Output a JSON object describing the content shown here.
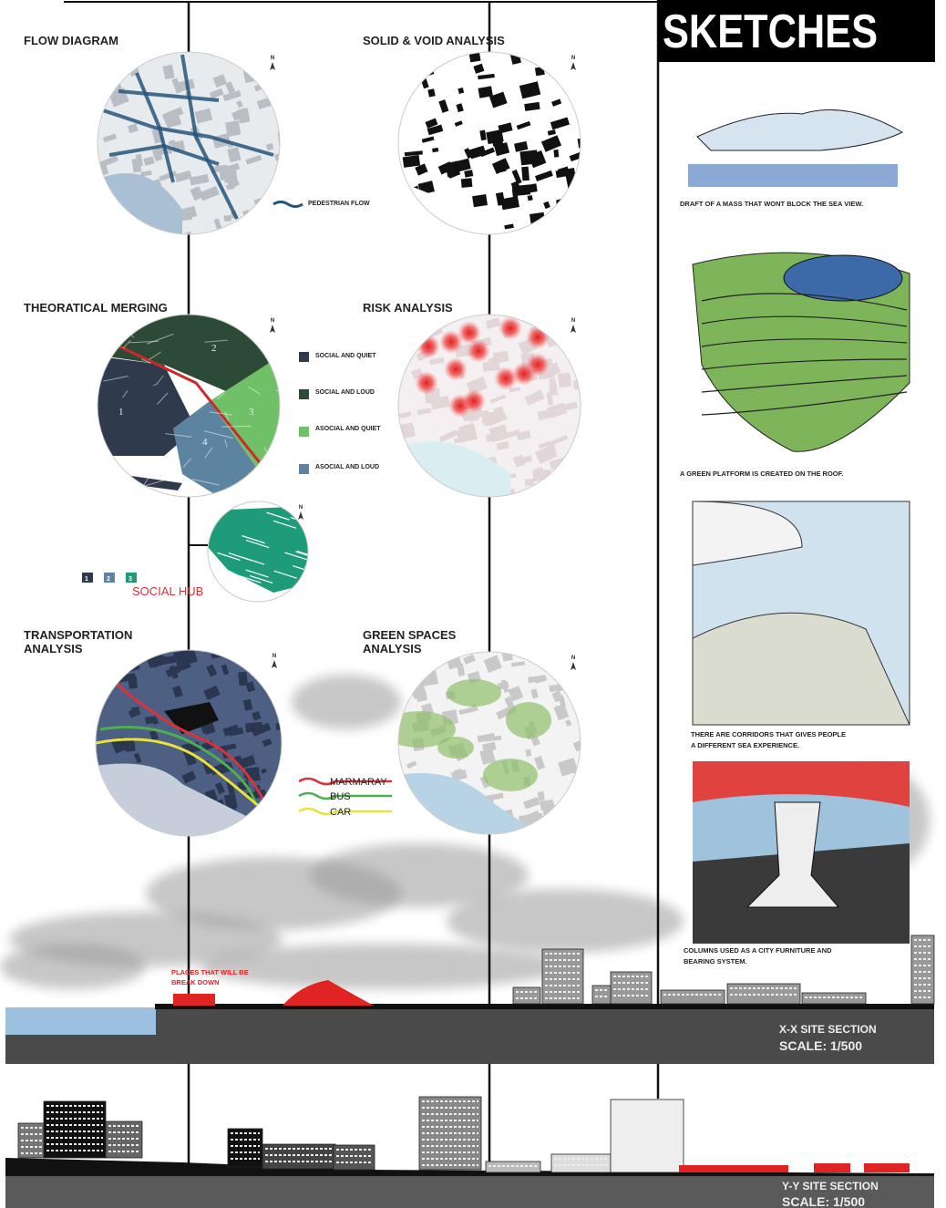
{
  "header": {
    "title": "SKETCHES"
  },
  "north": "N",
  "flow_diagram": {
    "title": "FLOW DIAGRAM",
    "legend": "PEDESTRIAN FLOW"
  },
  "solid_void": {
    "title": "SOLID & VOID ANALYSIS"
  },
  "theoretical_merging": {
    "title": "THEORATICAL MERGING",
    "zones": [
      "1",
      "2",
      "3",
      "4"
    ],
    "legend": [
      "SOCIAL AND QUIET",
      "SOCIAL AND LOUD",
      "ASOCIAL AND QUIET",
      "ASOCIAL AND LOUD"
    ]
  },
  "risk_analysis": {
    "title": "RISK ANALYSIS"
  },
  "social_hub": {
    "label": "SOCIAL HUB",
    "keys": [
      "1",
      "2",
      "3"
    ]
  },
  "transportation": {
    "title_lines": [
      "TRANSPORTATION",
      "ANALYSIS"
    ],
    "legend": [
      "MARMARAY",
      "BUS",
      "CAR"
    ]
  },
  "green_spaces": {
    "title_lines": [
      "GREEN SPACES",
      "ANALYSIS"
    ]
  },
  "sketches": [
    {
      "caption_lines": [
        "DRAFT OF A MASS THAT WONT BLOCK THE SEA VIEW."
      ]
    },
    {
      "caption_lines": [
        "A GREEN PLATFORM IS CREATED ON THE ROOF."
      ]
    },
    {
      "caption_lines": [
        "THERE ARE CORRIDORS THAT GIVES PEOPLE",
        "A DIFFERENT SEA EXPERIENCE."
      ]
    },
    {
      "caption_lines": [
        "COLUMNS USED AS A CITY FURNITURE AND",
        "BEARING SYSTEM."
      ]
    }
  ],
  "sections": {
    "demolition_note_lines": [
      "PLACES THAT WILL BE",
      "BREAK DOWN"
    ],
    "xx": {
      "title": "X-X SITE SECTION",
      "scale": "SCALE: 1/500"
    },
    "yy": {
      "title": "Y-Y SITE SECTION",
      "scale": "SCALE: 1/500"
    }
  }
}
